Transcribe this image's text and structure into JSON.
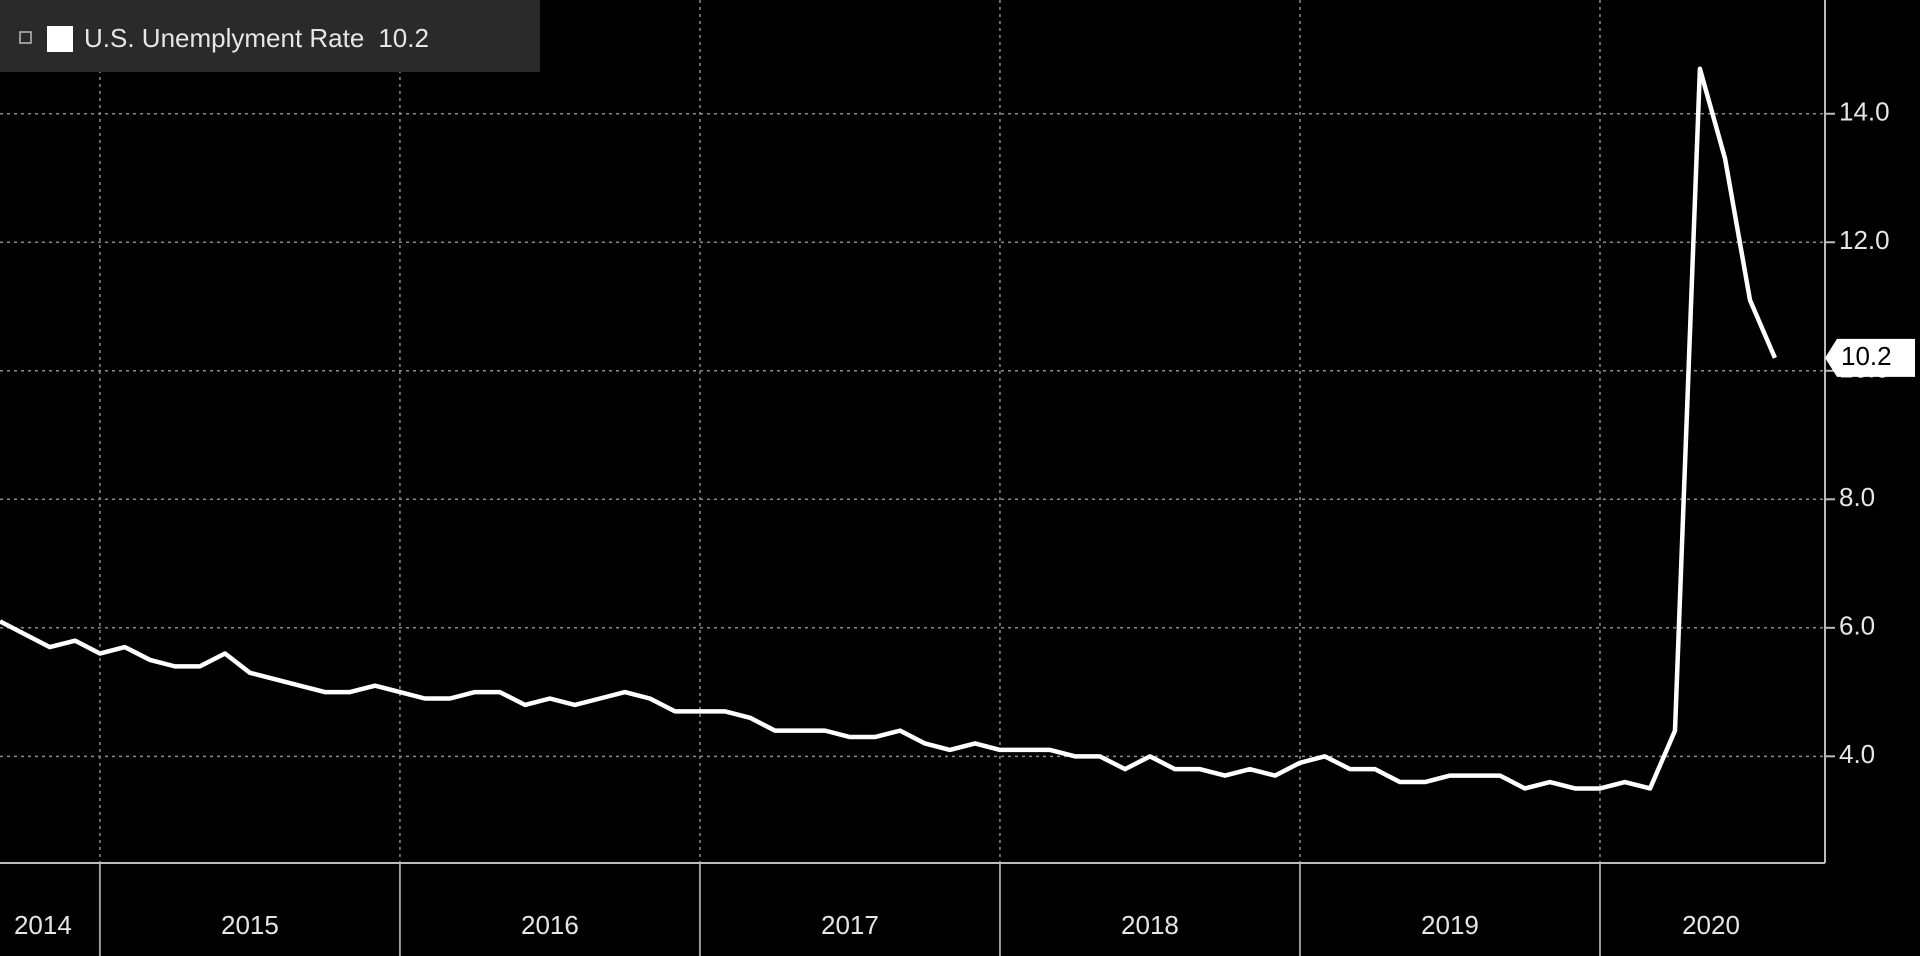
{
  "chart_data": {
    "type": "line",
    "x": [
      2014.667,
      2014.75,
      2014.833,
      2014.917,
      2015,
      2015.083,
      2015.167,
      2015.25,
      2015.333,
      2015.417,
      2015.5,
      2015.583,
      2015.667,
      2015.75,
      2015.833,
      2015.917,
      2016,
      2016.083,
      2016.167,
      2016.25,
      2016.333,
      2016.417,
      2016.5,
      2016.583,
      2016.667,
      2016.75,
      2016.833,
      2016.917,
      2017,
      2017.083,
      2017.167,
      2017.25,
      2017.333,
      2017.417,
      2017.5,
      2017.583,
      2017.667,
      2017.75,
      2017.833,
      2017.917,
      2018,
      2018.083,
      2018.167,
      2018.25,
      2018.333,
      2018.417,
      2018.5,
      2018.583,
      2018.667,
      2018.75,
      2018.833,
      2018.917,
      2019,
      2019.083,
      2019.167,
      2019.25,
      2019.333,
      2019.417,
      2019.5,
      2019.583,
      2019.667,
      2019.75,
      2019.833,
      2019.917,
      2020,
      2020.083,
      2020.167,
      2020.25,
      2020.333,
      2020.417,
      2020.5,
      2020.583
    ],
    "series": [
      {
        "name": "U.S. Unemplyment Rate",
        "color": "#ffffff",
        "values": [
          6.1,
          5.9,
          5.7,
          5.8,
          5.6,
          5.7,
          5.5,
          5.4,
          5.4,
          5.6,
          5.3,
          5.2,
          5.1,
          5.0,
          5.0,
          5.1,
          5.0,
          4.9,
          4.9,
          5.0,
          5.0,
          4.8,
          4.9,
          4.8,
          4.9,
          5.0,
          4.9,
          4.7,
          4.7,
          4.7,
          4.6,
          4.4,
          4.4,
          4.4,
          4.3,
          4.3,
          4.4,
          4.2,
          4.1,
          4.2,
          4.1,
          4.1,
          4.1,
          4.0,
          4.0,
          3.8,
          4.0,
          3.8,
          3.8,
          3.7,
          3.8,
          3.7,
          3.9,
          4.0,
          3.8,
          3.8,
          3.6,
          3.6,
          3.7,
          3.7,
          3.7,
          3.5,
          3.6,
          3.5,
          3.5,
          3.6,
          3.5,
          4.4,
          14.7,
          13.3,
          11.1,
          10.2
        ]
      }
    ],
    "xlim": [
      2014.667,
      2020.75
    ],
    "xgrid": [
      2015,
      2016,
      2017,
      2018,
      2019,
      2020
    ],
    "xticks": [
      {
        "value": 2014.81,
        "label": "2014"
      },
      {
        "value": 2015.5,
        "label": "2015"
      },
      {
        "value": 2016.5,
        "label": "2016"
      },
      {
        "value": 2017.5,
        "label": "2017"
      },
      {
        "value": 2018.5,
        "label": "2018"
      },
      {
        "value": 2019.5,
        "label": "2019"
      },
      {
        "value": 2020.37,
        "label": "2020"
      }
    ],
    "ylim": [
      2.34,
      15.77
    ],
    "yticks": [
      {
        "value": 4,
        "label": "4.0"
      },
      {
        "value": 6,
        "label": "6.0"
      },
      {
        "value": 8,
        "label": "8.0"
      },
      {
        "value": 10,
        "label": "10.0"
      },
      {
        "value": 12,
        "label": "12.0"
      },
      {
        "value": 14,
        "label": "14.0"
      }
    ],
    "grid": true
  }
}
